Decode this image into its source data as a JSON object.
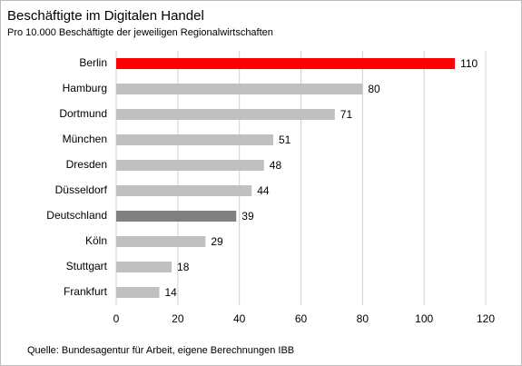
{
  "chart_data": {
    "type": "bar",
    "orientation": "horizontal",
    "title": "Beschäftigte im Digitalen Handel",
    "subtitle": "Pro 10.000 Beschäftigte der jeweiligen Regionalwirtschaften",
    "categories": [
      "Berlin",
      "Hamburg",
      "Dortmund",
      "München",
      "Dresden",
      "Düsseldorf",
      "Deutschland",
      "Köln",
      "Stuttgart",
      "Frankfurt"
    ],
    "values": [
      110,
      80,
      71,
      51,
      48,
      44,
      39,
      29,
      18,
      14
    ],
    "colors": [
      "#ff0000",
      "#c0c0c0",
      "#c0c0c0",
      "#c0c0c0",
      "#c0c0c0",
      "#c0c0c0",
      "#808080",
      "#c0c0c0",
      "#c0c0c0",
      "#c0c0c0"
    ],
    "xlim": [
      0,
      120
    ],
    "xticks": [
      0,
      20,
      40,
      60,
      80,
      100,
      120
    ],
    "grid": true,
    "source": "Quelle: Bundesagentur für Arbeit, eigene Berechnungen IBB"
  }
}
